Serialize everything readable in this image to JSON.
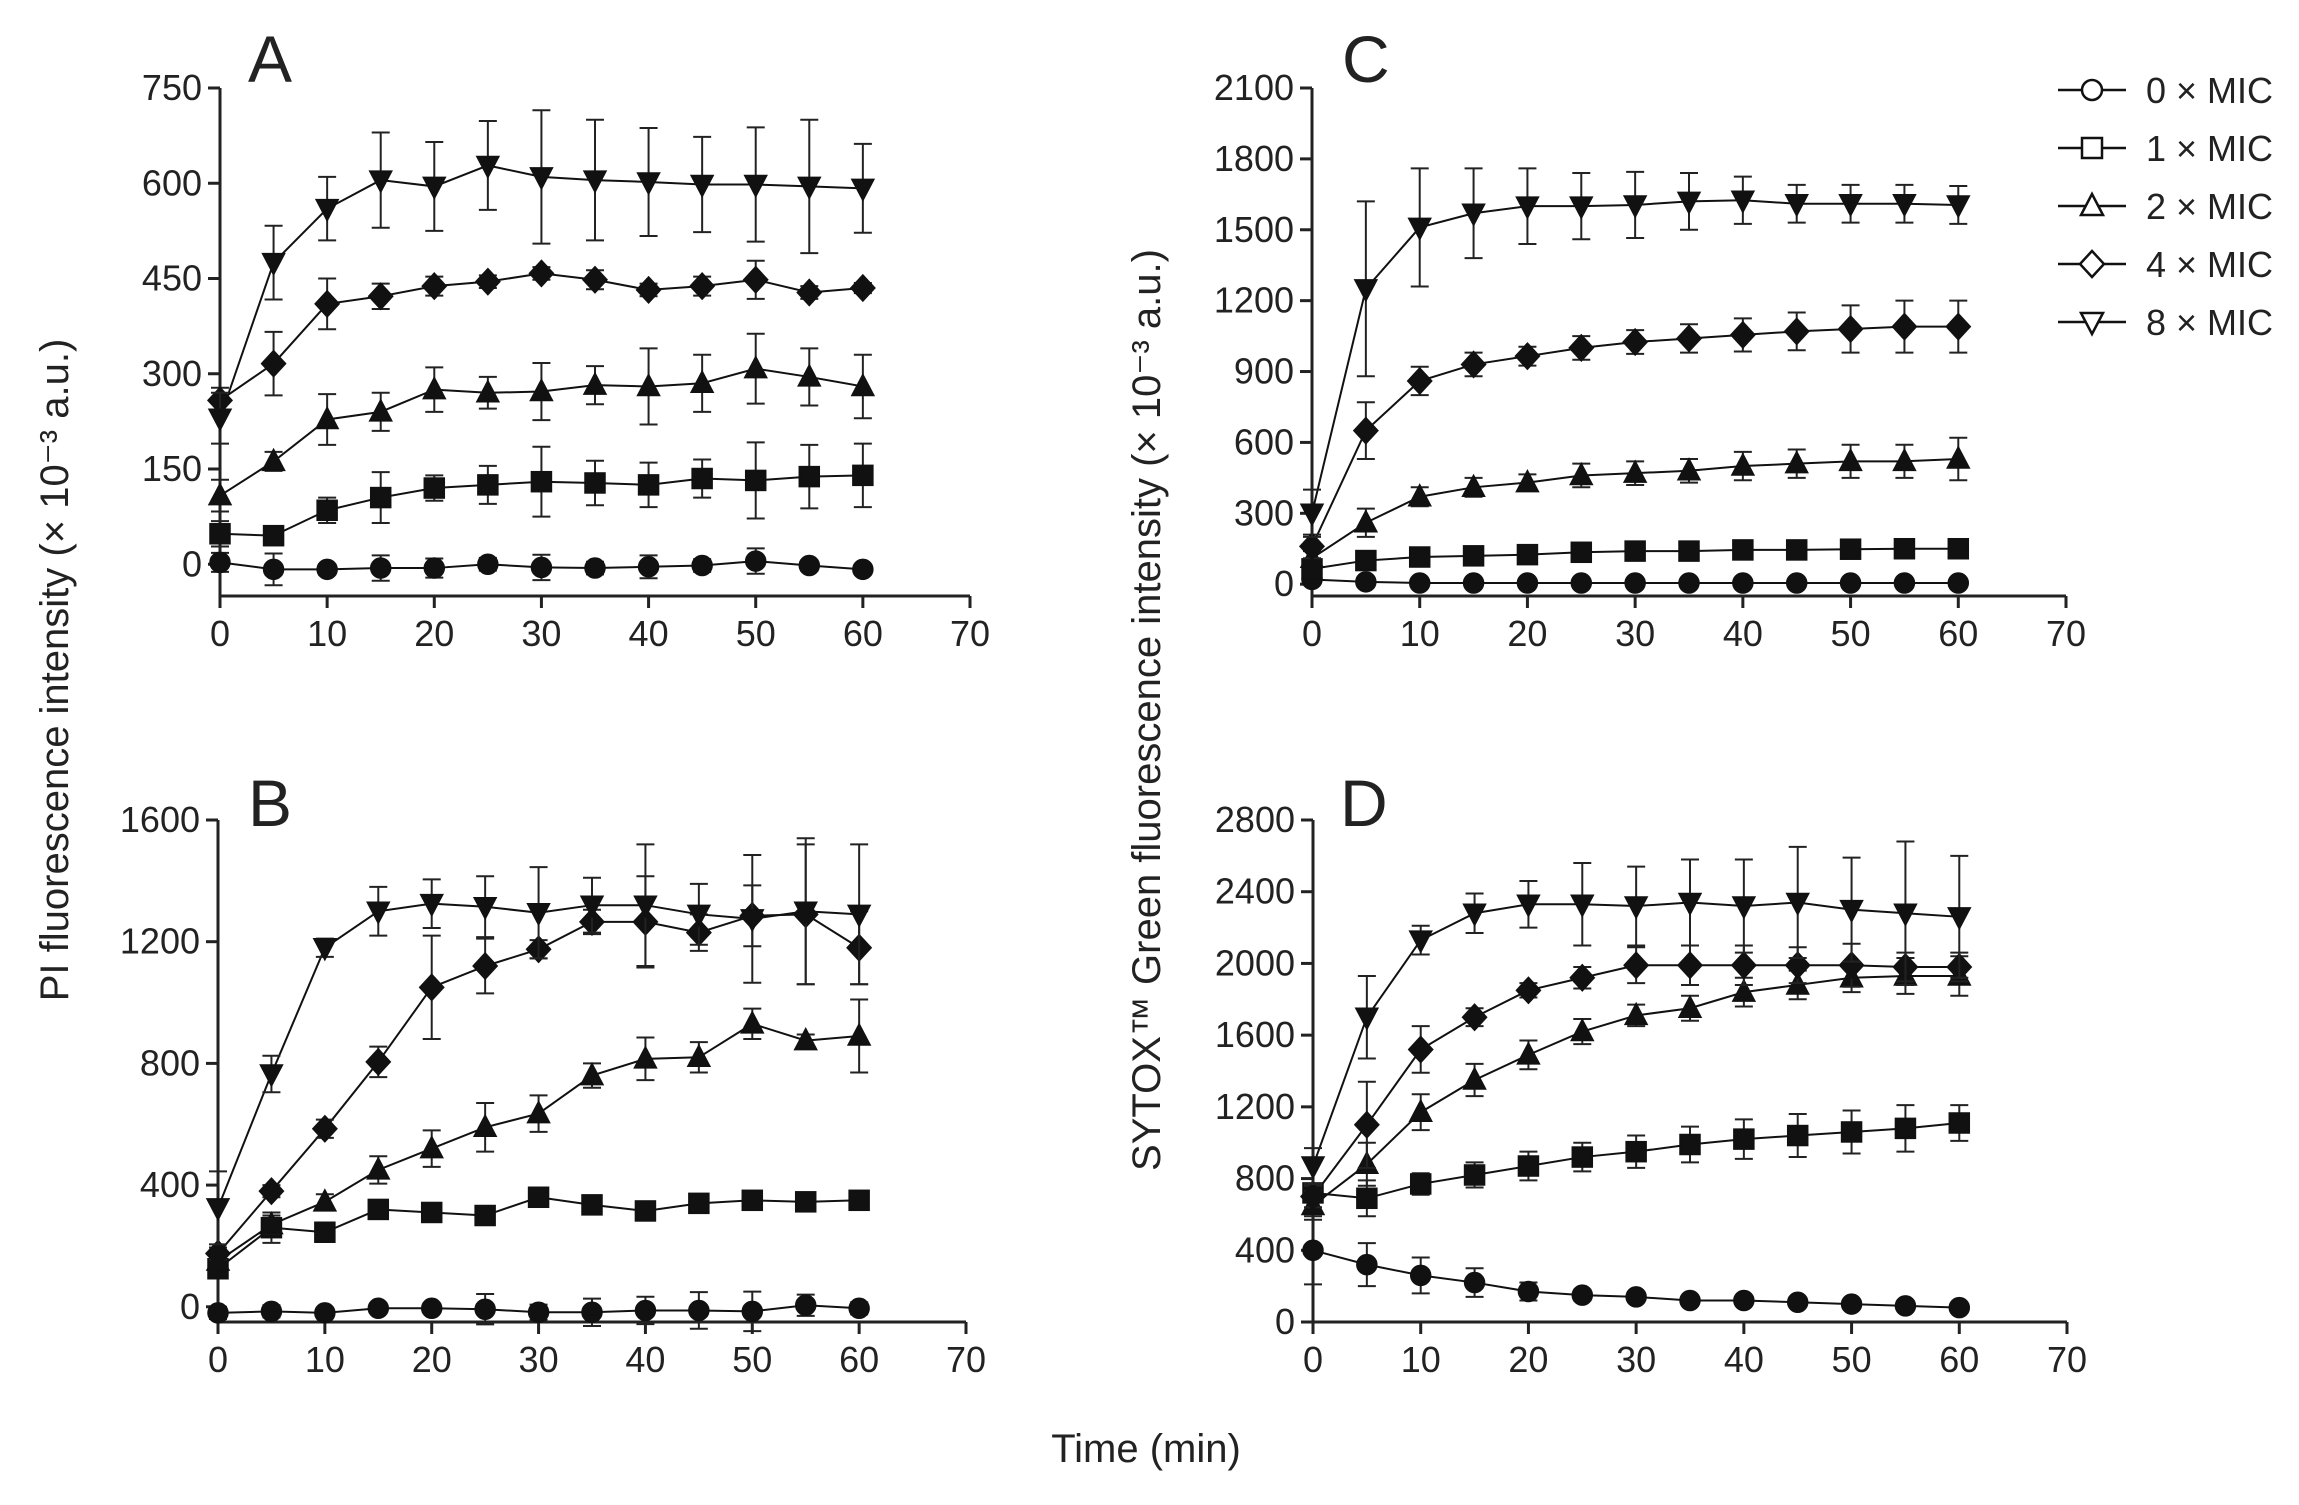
{
  "chart_data": {
    "type": "line",
    "x_title": "Time (min)",
    "x_ticks": [
      0,
      10,
      20,
      30,
      40,
      50,
      60,
      70
    ],
    "xlim": [
      0,
      70
    ],
    "left_y_title": "PI fluorescence intensity (× 10⁻³ a.u.)",
    "right_y_title": "SYTOX™ Green fluorescence intensity (× 10⁻³ a.u.)",
    "x": [
      0,
      5,
      10,
      15,
      20,
      25,
      30,
      35,
      40,
      45,
      50,
      55,
      60
    ],
    "legend": {
      "position": "top-right",
      "entries": [
        {
          "label": "0 × MIC",
          "marker": "circle"
        },
        {
          "label": "1 × MIC",
          "marker": "square"
        },
        {
          "label": "2 × MIC",
          "marker": "triangle-up"
        },
        {
          "label": "4 × MIC",
          "marker": "diamond"
        },
        {
          "label": "8 × MIC",
          "marker": "triangle-down"
        }
      ]
    },
    "panels": [
      {
        "id": "A",
        "ylim": [
          -50,
          750
        ],
        "y_ticks": [
          0,
          150,
          300,
          450,
          600,
          750
        ],
        "series": [
          {
            "name": "0 × MIC",
            "marker": "circle",
            "values": [
              3,
              -8,
              -8,
              -6,
              -6,
              0,
              -5,
              -6,
              -4,
              -2,
              5,
              -2,
              -8
            ],
            "errors": [
              15,
              25,
              8,
              20,
              15,
              10,
              20,
              10,
              18,
              10,
              20,
              8,
              6
            ]
          },
          {
            "name": "1 × MIC",
            "marker": "square",
            "values": [
              48,
              45,
              85,
              105,
              120,
              125,
              130,
              128,
              125,
              135,
              132,
              138,
              140
            ],
            "errors": [
              20,
              15,
              20,
              40,
              20,
              30,
              55,
              35,
              35,
              30,
              60,
              50,
              50
            ]
          },
          {
            "name": "2 × MIC",
            "marker": "triangle-up",
            "values": [
              108,
              162,
              228,
              240,
              275,
              270,
              272,
              282,
              280,
              285,
              308,
              295,
              280
            ],
            "errors": [
              25,
              15,
              40,
              30,
              35,
              25,
              45,
              30,
              60,
              45,
              55,
              45,
              50
            ]
          },
          {
            "name": "4 × MIC",
            "marker": "diamond",
            "values": [
              258,
              316,
              410,
              422,
              438,
              445,
              458,
              448,
              432,
              438,
              448,
              428,
              435
            ],
            "errors": [
              20,
              50,
              40,
              20,
              15,
              10,
              10,
              15,
              10,
              15,
              30,
              10,
              8
            ]
          },
          {
            "name": "8 × MIC",
            "marker": "triangle-down",
            "values": [
              230,
              475,
              560,
              605,
              595,
              628,
              610,
              605,
              602,
              598,
              598,
              595,
              592
            ],
            "errors": [
              40,
              58,
              50,
              75,
              70,
              70,
              105,
              95,
              85,
              75,
              90,
              105,
              70
            ]
          }
        ]
      },
      {
        "id": "B",
        "ylim": [
          -50,
          1600
        ],
        "y_ticks": [
          0,
          400,
          800,
          1200,
          1600
        ],
        "series": [
          {
            "name": "0 × MIC",
            "marker": "circle",
            "values": [
              -20,
              -15,
              -20,
              -5,
              -5,
              -8,
              -18,
              -18,
              -12,
              -12,
              -15,
              5,
              -5
            ],
            "errors": [
              20,
              20,
              15,
              10,
              15,
              50,
              25,
              45,
              45,
              60,
              65,
              35,
              20
            ]
          },
          {
            "name": "1 × MIC",
            "marker": "square",
            "values": [
              125,
              260,
              245,
              320,
              310,
              300,
              360,
              335,
              315,
              340,
              350,
              345,
              350
            ],
            "errors": [
              20,
              50,
              20,
              20,
              15,
              15,
              20,
              15,
              15,
              15,
              20,
              15,
              15
            ]
          },
          {
            "name": "2 × MIC",
            "marker": "triangle-up",
            "values": [
              150,
              270,
              345,
              450,
              520,
              590,
              635,
              760,
              815,
              820,
              930,
              875,
              890
            ],
            "errors": [
              20,
              30,
              25,
              45,
              60,
              80,
              60,
              40,
              70,
              50,
              50,
              20,
              120
            ]
          },
          {
            "name": "4 × MIC",
            "marker": "diamond",
            "values": [
              175,
              380,
              585,
              805,
              1050,
              1120,
              1175,
              1265,
              1265,
              1230,
              1285,
              1290,
              1180
            ],
            "errors": [
              20,
              20,
              30,
              50,
              170,
              90,
              30,
              40,
              150,
              60,
              100,
              230,
              120
            ]
          },
          {
            "name": "8 × MIC",
            "marker": "triangle-down",
            "values": [
              325,
              765,
              1180,
              1300,
              1325,
              1315,
              1295,
              1320,
              1320,
              1290,
              1275,
              1300,
              1290
            ],
            "errors": [
              120,
              60,
              30,
              80,
              80,
              100,
              150,
              90,
              200,
              100,
              210,
              240,
              230
            ]
          }
        ]
      },
      {
        "id": "C",
        "ylim": [
          -50,
          2100
        ],
        "y_ticks": [
          0,
          300,
          600,
          900,
          1200,
          1500,
          1800,
          2100
        ],
        "series": [
          {
            "name": "0 × MIC",
            "marker": "circle",
            "values": [
              20,
              10,
              5,
              5,
              5,
              5,
              5,
              5,
              5,
              5,
              5,
              5,
              5
            ],
            "errors": [
              10,
              10,
              8,
              8,
              8,
              8,
              8,
              8,
              8,
              8,
              8,
              8,
              8
            ]
          },
          {
            "name": "1 × MIC",
            "marker": "square",
            "values": [
              65,
              100,
              115,
              120,
              125,
              135,
              140,
              140,
              145,
              145,
              148,
              150,
              150
            ],
            "errors": [
              20,
              15,
              15,
              15,
              15,
              15,
              15,
              15,
              15,
              15,
              15,
              15,
              15
            ]
          },
          {
            "name": "2 × MIC",
            "marker": "triangle-up",
            "values": [
              110,
              260,
              370,
              410,
              430,
              460,
              470,
              480,
              500,
              510,
              520,
              520,
              530
            ],
            "errors": [
              30,
              60,
              40,
              40,
              35,
              50,
              50,
              50,
              60,
              60,
              70,
              70,
              90
            ]
          },
          {
            "name": "4 × MIC",
            "marker": "diamond",
            "values": [
              160,
              650,
              860,
              930,
              965,
              1000,
              1025,
              1040,
              1055,
              1070,
              1080,
              1090,
              1090
            ],
            "errors": [
              50,
              120,
              60,
              50,
              40,
              50,
              50,
              60,
              70,
              80,
              100,
              110,
              110
            ]
          },
          {
            "name": "8 × MIC",
            "marker": "triangle-down",
            "values": [
              300,
              1250,
              1510,
              1570,
              1600,
              1600,
              1605,
              1620,
              1625,
              1610,
              1610,
              1610,
              1605
            ],
            "errors": [
              100,
              370,
              250,
              190,
              160,
              140,
              140,
              120,
              100,
              80,
              80,
              80,
              80
            ]
          }
        ]
      },
      {
        "id": "D",
        "ylim": [
          0,
          2800
        ],
        "y_ticks": [
          0,
          400,
          800,
          1200,
          1600,
          2000,
          2400,
          2800
        ],
        "series": [
          {
            "name": "0 × MIC",
            "marker": "circle",
            "values": [
              400,
              320,
              260,
              220,
              170,
              150,
              140,
              120,
              120,
              110,
              100,
              90,
              80
            ],
            "errors": [
              190,
              120,
              100,
              80,
              50,
              30,
              20,
              20,
              20,
              20,
              20,
              20,
              20
            ]
          },
          {
            "name": "1 × MIC",
            "marker": "square",
            "values": [
              720,
              690,
              770,
              820,
              870,
              920,
              950,
              990,
              1020,
              1040,
              1060,
              1080,
              1110
            ],
            "errors": [
              50,
              100,
              60,
              70,
              80,
              80,
              90,
              100,
              110,
              120,
              120,
              130,
              100
            ]
          },
          {
            "name": "2 × MIC",
            "marker": "triangle-up",
            "values": [
              650,
              880,
              1170,
              1350,
              1490,
              1620,
              1710,
              1750,
              1840,
              1880,
              1920,
              1930,
              1930
            ],
            "errors": [
              80,
              120,
              100,
              90,
              80,
              70,
              60,
              70,
              80,
              80,
              80,
              100,
              110
            ]
          },
          {
            "name": "4 × MIC",
            "marker": "diamond",
            "values": [
              700,
              1100,
              1520,
              1700,
              1850,
              1920,
              1990,
              1990,
              1990,
              1990,
              1990,
              1980,
              1980
            ],
            "errors": [
              60,
              240,
              130,
              50,
              40,
              60,
              100,
              110,
              110,
              100,
              120,
              80,
              80
            ]
          },
          {
            "name": "8 × MIC",
            "marker": "triangle-down",
            "values": [
              870,
              1700,
              2130,
              2280,
              2330,
              2330,
              2320,
              2340,
              2320,
              2340,
              2300,
              2280,
              2260
            ],
            "errors": [
              100,
              230,
              80,
              110,
              130,
              230,
              220,
              240,
              260,
              310,
              290,
              400,
              340
            ]
          }
        ]
      }
    ]
  }
}
